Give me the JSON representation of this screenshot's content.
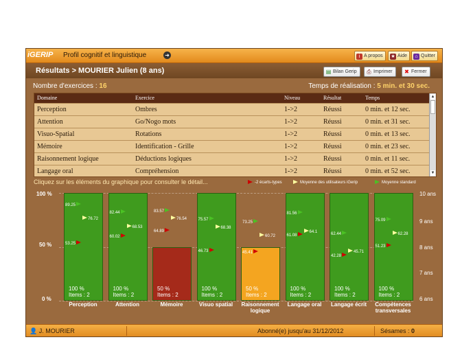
{
  "topbar": {
    "logo": "iGERIP",
    "title": "Profil cognitif et linguistique",
    "apropos": "A propos",
    "aide": "Aide",
    "quitter": "Quitter"
  },
  "header": {
    "title": "Résultats  > MOURIER Julien (8 ans)",
    "bilan": "Bilan Gerip",
    "imprimer": "Imprimer",
    "fermer": "Fermer"
  },
  "info": {
    "nb_label": "Nombre d'exercices :",
    "nb_value": "16",
    "time_label": "Temps de réalisation :",
    "time_value": "5 min. et 30 sec."
  },
  "table": {
    "headers": [
      "Domaine",
      "Exercice",
      "Niveau",
      "Résultat",
      "Temps"
    ],
    "rows": [
      [
        "Perception",
        "Ombres",
        "1->2",
        "Réussi",
        "0 min. et 12 sec."
      ],
      [
        "Attention",
        "Go/Nogo mots",
        "1->2",
        "Réussi",
        "0 min. et 31 sec."
      ],
      [
        "Visuo-Spatial",
        "Rotations",
        "1->2",
        "Réussi",
        "0 min. et 13 sec."
      ],
      [
        "Mémoire",
        "Identification - Grille",
        "1->2",
        "Réussi",
        "0 min. et 23 sec."
      ],
      [
        "Raisonnement logique",
        "Déductions logiques",
        "1->2",
        "Réussi",
        "0 min. et 11 sec."
      ],
      [
        "Langage oral",
        "Compréhension",
        "1->2",
        "Réussi",
        "0 min. et 52 sec."
      ]
    ]
  },
  "chart_hint": "Cliquez sur les éléments du graphique pour consulter le détail...",
  "legend": {
    "red": "-2 écarts-types",
    "yellow": "Moyenne des utilisateurs iGerip",
    "green": "Moyenne standard"
  },
  "colors": {
    "green": "#3f9b1e",
    "red": "#a52a1a",
    "orange": "#f4a520",
    "marker_red": "#d00000",
    "marker_yellow": "#ffffa0",
    "marker_green": "#4bc224"
  },
  "chart_data": {
    "type": "bar",
    "categories": [
      "Perception",
      "Attention",
      "Mémoire",
      "Visuo spatial",
      "Raisonnement logique",
      "Langage oral",
      "Langage écrit",
      "Compétences transversales"
    ],
    "values": [
      100,
      100,
      50,
      100,
      50,
      100,
      100,
      100
    ],
    "pct_labels": [
      "100 %",
      "100 %",
      "50 %",
      "100 %",
      "50 %",
      "100 %",
      "100 %",
      "100 %"
    ],
    "items_labels": [
      "Items : 2",
      "Items : 2",
      "Items : 2",
      "Items : 2",
      "Items : 2",
      "Items : 2",
      "Items : 2",
      "Items : 2"
    ],
    "bar_colors": [
      "#3f9b1e",
      "#3f9b1e",
      "#a52a1a",
      "#3f9b1e",
      "#f4a520",
      "#3f9b1e",
      "#3f9b1e",
      "#3f9b1e"
    ],
    "green_markers": [
      89.25,
      82.44,
      83.57,
      75.57,
      73.25,
      81.56,
      null,
      75.09
    ],
    "yellow_markers": [
      76.72,
      68.53,
      76.54,
      68.38,
      60.72,
      64.1,
      45.71,
      62.28
    ],
    "red_markers": [
      53.25,
      60.02,
      64.89,
      46.73,
      45.41,
      61.08,
      42.28,
      51.23
    ],
    "extra_green_markers": [
      null,
      null,
      null,
      null,
      null,
      null,
      62.44,
      null
    ],
    "y_ticks": [
      "100 %",
      "50 %",
      "0 %"
    ],
    "ylim": [
      0,
      100
    ],
    "right_axis_ticks": [
      "10 ans",
      "9 ans",
      "8 ans",
      "7 ans",
      "6 ans"
    ],
    "grid": true,
    "legend_position": "top-right"
  },
  "footer": {
    "user": "J. MOURIER",
    "subscription": "Abonné(e) jusqu'au 31/12/2012",
    "sesames_label": "Sésames :",
    "sesames_value": "0"
  }
}
